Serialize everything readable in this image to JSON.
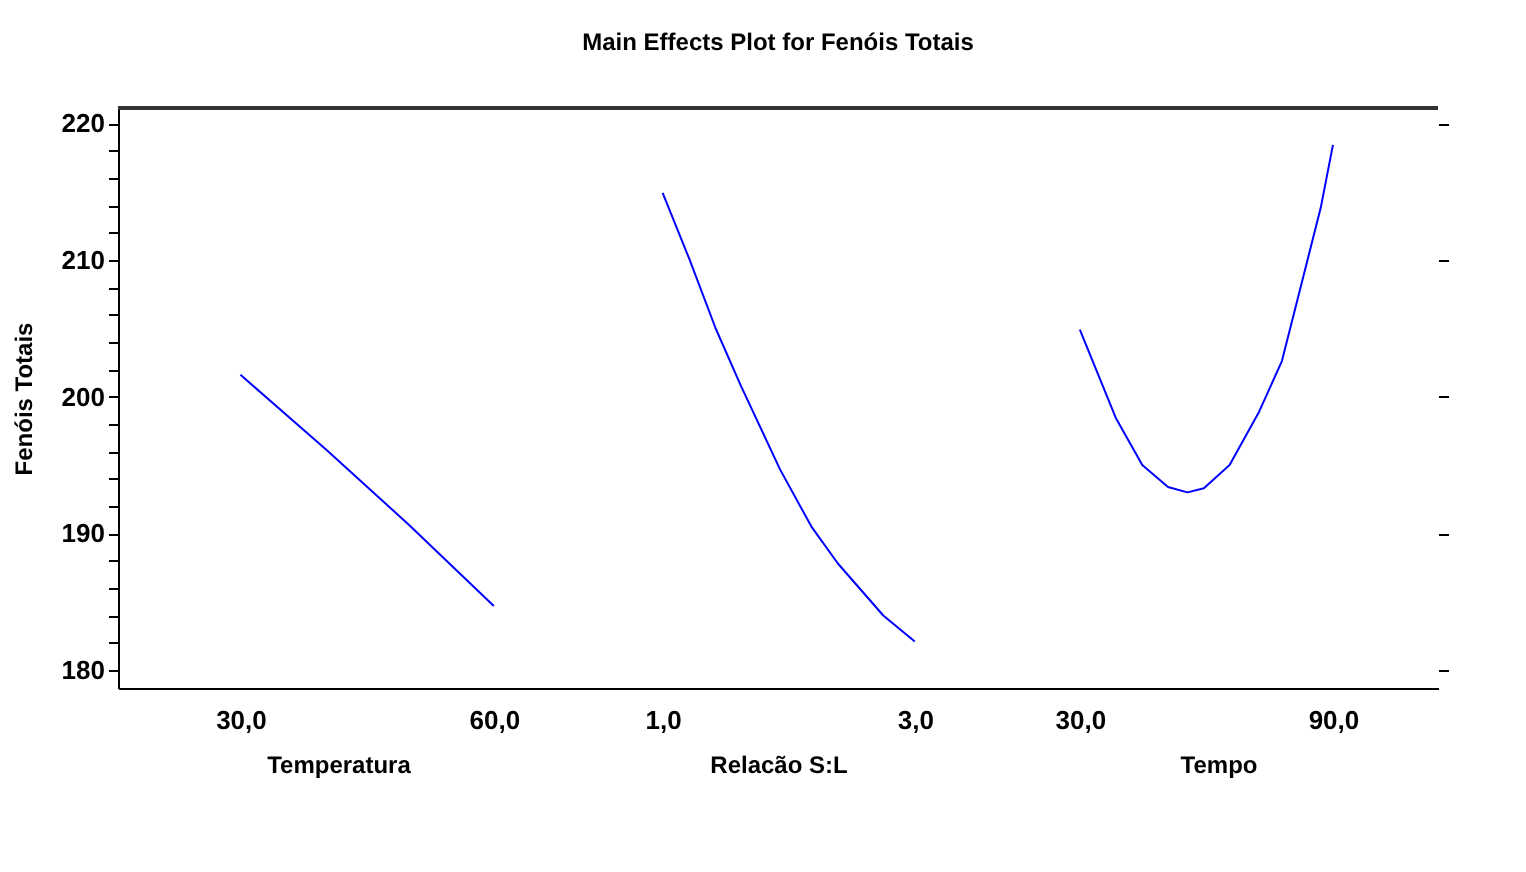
{
  "chart_data": [
    {
      "type": "line",
      "xlabel": "Temperatura",
      "ylabel": "Fenóis Totais",
      "x": [
        30,
        40.2,
        50,
        60
      ],
      "series": [
        {
          "color": "#0000ff",
          "values": [
            201.6,
            196.1,
            190.6,
            184.7
          ]
        }
      ],
      "xlim": [
        15.5,
        67.6
      ],
      "xticks": [
        {
          "value": 30,
          "label": "30,0"
        },
        {
          "value": 60,
          "label": "60,0"
        }
      ],
      "ylim": [
        178.7,
        221.1
      ],
      "yticks": [
        180,
        {
          "value": 182,
          "label": null
        },
        {
          "value": 184,
          "label": null
        },
        {
          "value": 186,
          "label": null
        },
        {
          "value": 188,
          "label": null
        },
        190,
        {
          "value": 192,
          "label": null
        },
        {
          "value": 194,
          "label": null
        },
        {
          "value": 196,
          "label": null
        },
        {
          "value": 198,
          "label": null
        },
        200,
        {
          "value": 202,
          "label": null
        },
        {
          "value": 204,
          "label": null
        },
        {
          "value": 206,
          "label": null
        },
        {
          "value": 208,
          "label": null
        },
        210,
        {
          "value": 212,
          "label": null
        },
        {
          "value": 214,
          "label": null
        },
        {
          "value": 216,
          "label": null
        },
        {
          "value": 218,
          "label": null
        },
        220
      ],
      "grid": false,
      "line_style": "solid",
      "marker": "none"
    },
    {
      "type": "line",
      "title": "Main Effects Plot for Fenóis Totais",
      "xlabel": "Relacão S:L",
      "x": [
        1.0,
        1.21,
        1.42,
        1.62,
        1.93,
        2.18,
        2.39,
        2.75,
        3.0
      ],
      "series": [
        {
          "color": "#0000ff",
          "values": [
            214.9,
            210.1,
            205.0,
            200.8,
            194.7,
            190.5,
            187.8,
            184.0,
            182.1
          ]
        }
      ],
      "xlim": [
        0.17,
        3.66
      ],
      "xticks": [
        {
          "value": 1,
          "label": "1,0"
        },
        {
          "value": 3,
          "label": "3,0"
        }
      ],
      "ylim": [
        178.7,
        221.1
      ],
      "tick_labels": "x",
      "grid": false,
      "line_style": "solid",
      "marker": "none"
    },
    {
      "type": "line",
      "xlabel": "Tempo",
      "x": [
        30,
        38.6,
        44.8,
        50.9,
        55.5,
        59.4,
        65.5,
        72.5,
        77.9,
        82.5,
        87.1,
        90
      ],
      "series": [
        {
          "color": "#0000ff",
          "values": [
            204.9,
            198.4,
            195.0,
            193.4,
            193.0,
            193.3,
            195.0,
            198.9,
            202.6,
            208.2,
            213.8,
            218.4
          ]
        }
      ],
      "xlim": [
        10.6,
        114.9
      ],
      "xticks": [
        {
          "value": 30,
          "label": "30,0"
        },
        {
          "value": 90,
          "label": "90,0"
        }
      ],
      "ylim": [
        178.7,
        221.1
      ],
      "yticks": [
        180,
        190,
        200,
        210,
        220
      ],
      "tick_labels": "x",
      "grid": false,
      "line_style": "solid",
      "marker": "none"
    }
  ]
}
